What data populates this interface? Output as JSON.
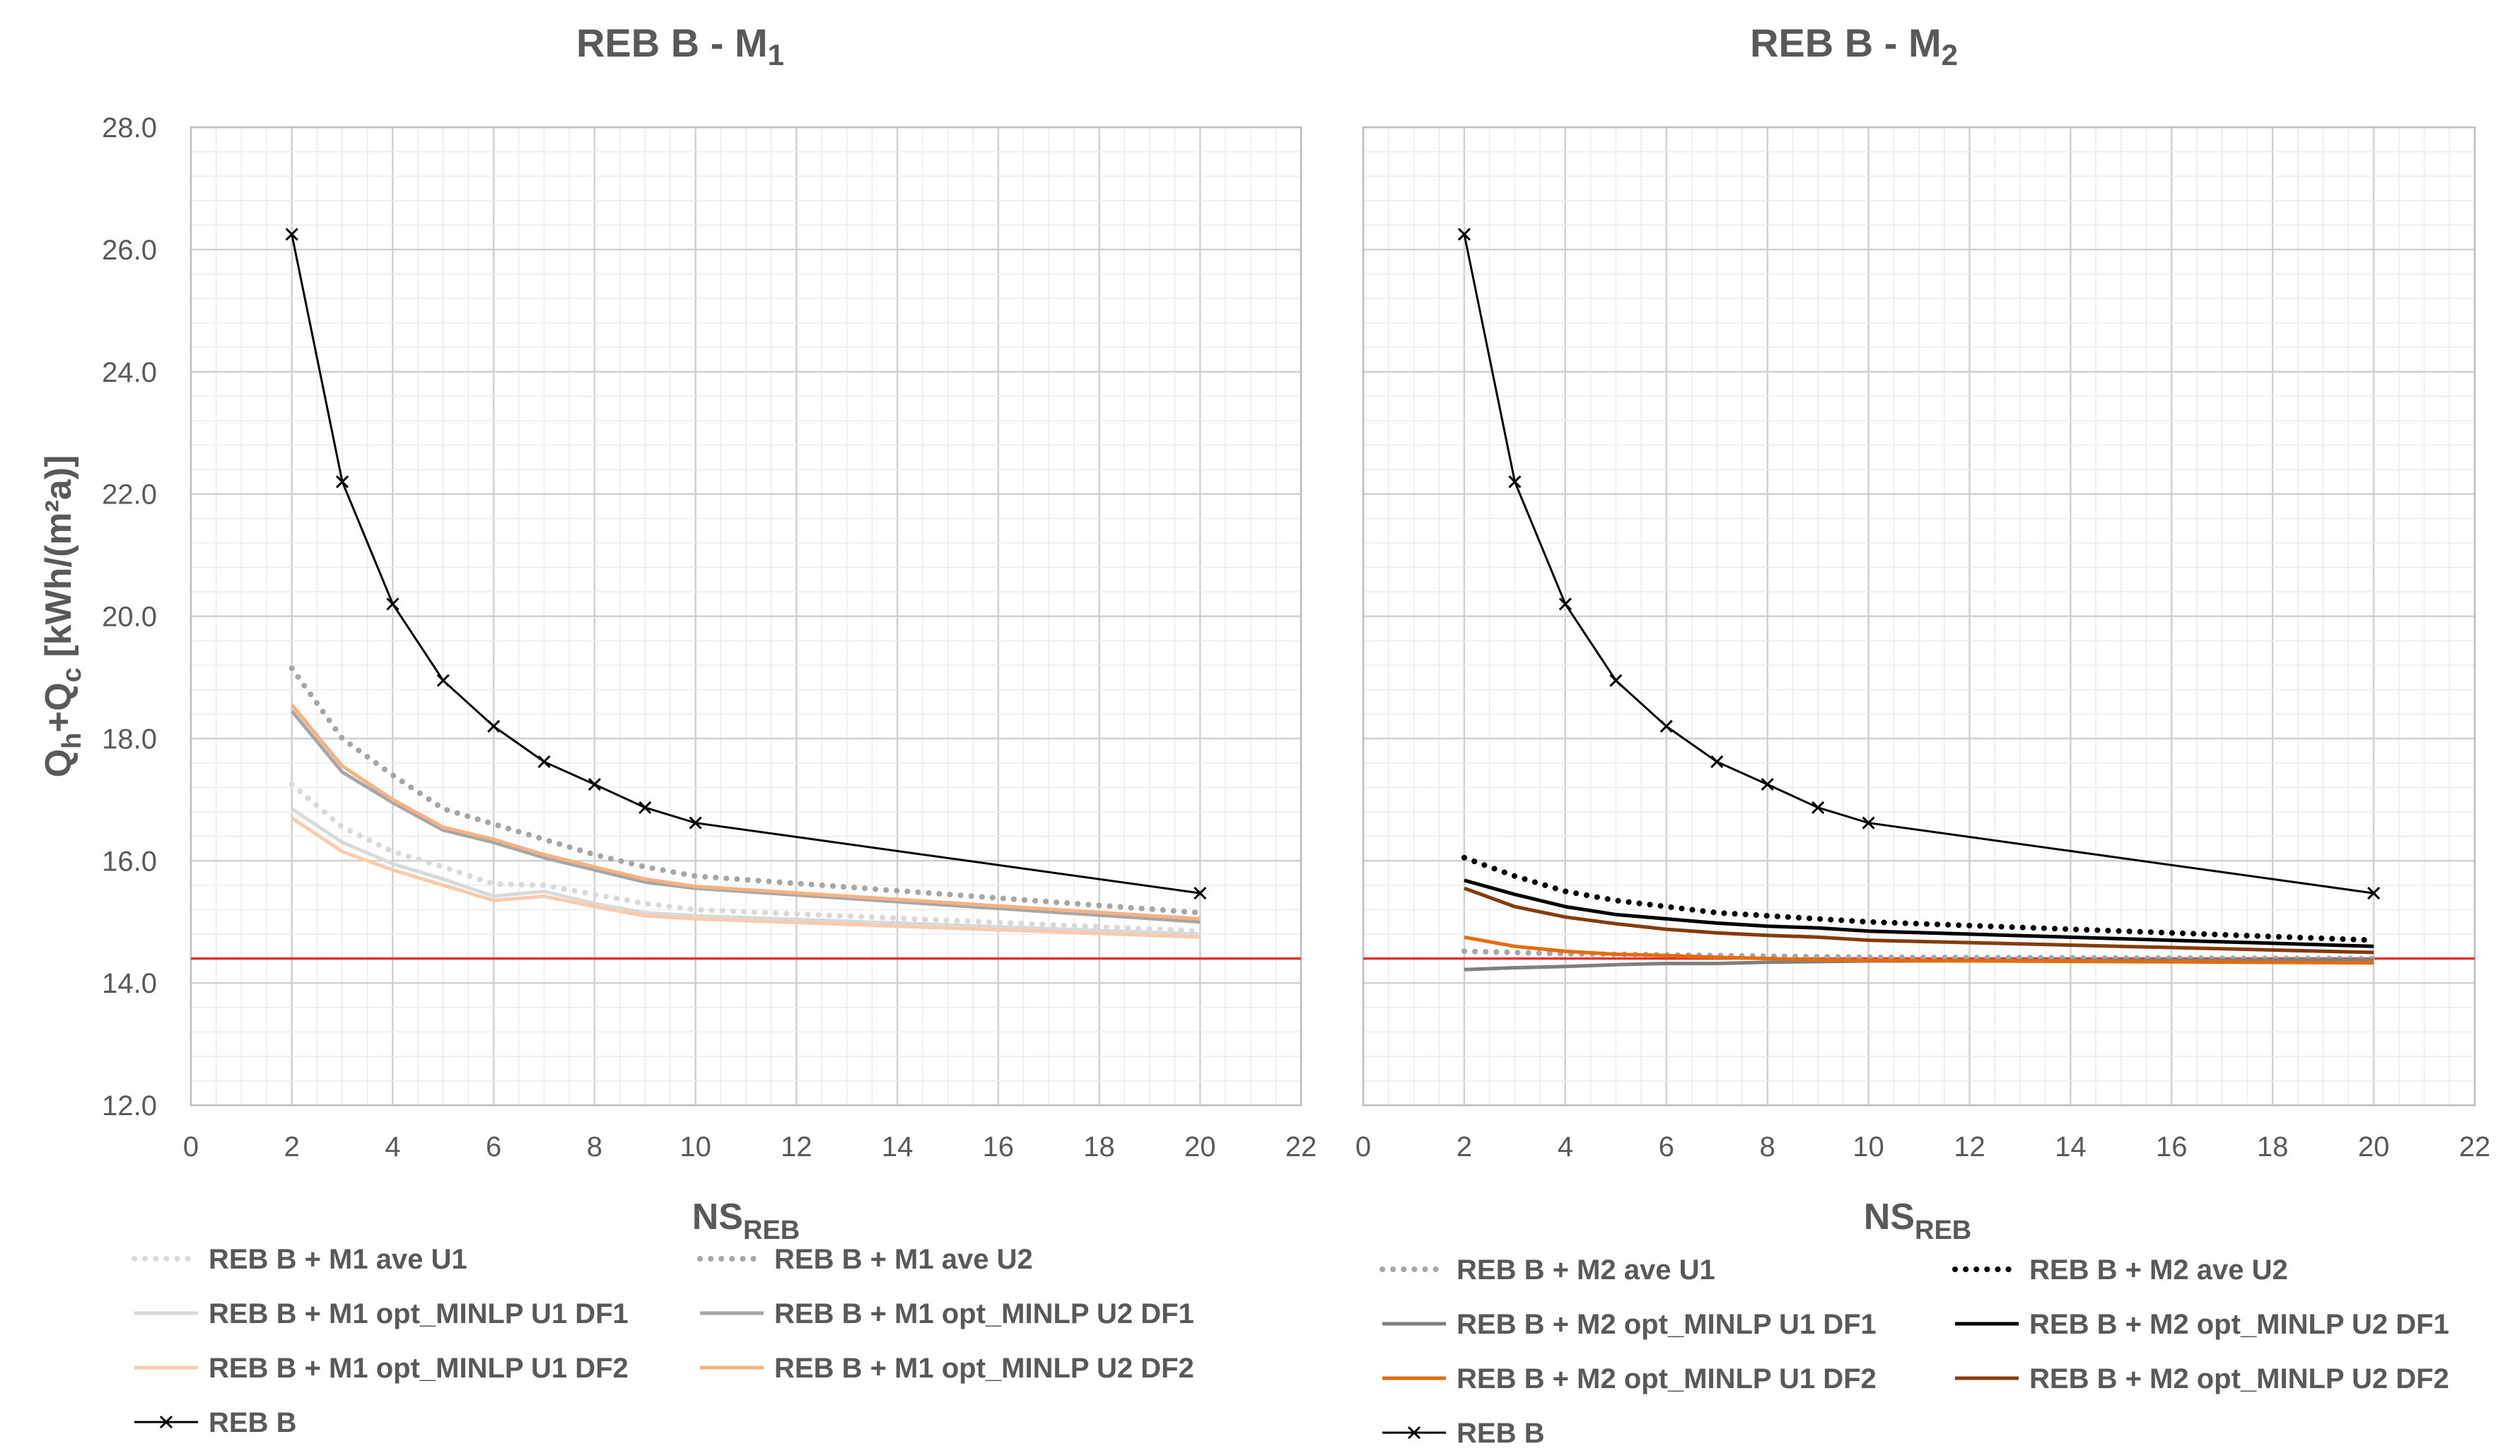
{
  "chart_data": [
    {
      "type": "line",
      "title": "REB B - M",
      "title_subscript": "1",
      "xlabel": "NS",
      "xlabel_subscript": "REB",
      "ylabel": "Q",
      "ylabel_sub1": "h",
      "ylabel_mid": "+Q",
      "ylabel_sub2": "c",
      "ylabel_unit": " [kWh/(m²a)]",
      "xlim": [
        0,
        22
      ],
      "ylim": [
        12,
        28
      ],
      "xticks": [
        "0",
        "2",
        "4",
        "6",
        "8",
        "10",
        "12",
        "14",
        "16",
        "18",
        "20",
        "22"
      ],
      "yticks": [
        "12.0",
        "14.0",
        "16.0",
        "18.0",
        "20.0",
        "22.0",
        "24.0",
        "26.0",
        "28.0"
      ],
      "grid": true,
      "reference_line": {
        "y": 14.4,
        "color": "#e8312b"
      },
      "series": [
        {
          "name": "REB B + M1 ave U1",
          "color": "#d9d9d9",
          "style": "dotted",
          "x": [
            2,
            3,
            4,
            5,
            6,
            7,
            8,
            9,
            10,
            20
          ],
          "y": [
            17.25,
            16.55,
            16.15,
            15.9,
            15.62,
            15.6,
            15.45,
            15.3,
            15.2,
            14.85
          ]
        },
        {
          "name": "REB B + M1 ave U2",
          "color": "#a6a6a6",
          "style": "dotted",
          "x": [
            2,
            3,
            4,
            5,
            6,
            7,
            8,
            9,
            10,
            20
          ],
          "y": [
            19.15,
            18.0,
            17.4,
            16.85,
            16.6,
            16.35,
            16.1,
            15.9,
            15.75,
            15.15
          ]
        },
        {
          "name": "REB B + M1 opt_MINLP U1 DF1",
          "color": "#d9d9d9",
          "style": "solid",
          "x": [
            2,
            3,
            4,
            5,
            6,
            7,
            8,
            9,
            10,
            20
          ],
          "y": [
            16.85,
            16.3,
            15.95,
            15.7,
            15.42,
            15.5,
            15.3,
            15.15,
            15.1,
            14.8
          ]
        },
        {
          "name": "REB B + M1 opt_MINLP U2 DF1",
          "color": "#a6a6a6",
          "style": "solid",
          "x": [
            2,
            3,
            4,
            5,
            6,
            7,
            8,
            9,
            10,
            20
          ],
          "y": [
            18.45,
            17.45,
            16.95,
            16.5,
            16.3,
            16.05,
            15.85,
            15.65,
            15.55,
            15.0
          ]
        },
        {
          "name": "REB B + M1 opt_MINLP U1 DF2",
          "color": "#f8cbad",
          "style": "solid",
          "x": [
            2,
            3,
            4,
            5,
            6,
            7,
            8,
            9,
            10,
            20
          ],
          "y": [
            16.7,
            16.15,
            15.85,
            15.6,
            15.35,
            15.42,
            15.25,
            15.1,
            15.05,
            14.75
          ]
        },
        {
          "name": "REB B + M1 opt_MINLP U2 DF2",
          "color": "#f4b183",
          "style": "solid",
          "x": [
            2,
            3,
            4,
            5,
            6,
            7,
            8,
            9,
            10,
            20
          ],
          "y": [
            18.55,
            17.55,
            17.0,
            16.55,
            16.35,
            16.1,
            15.9,
            15.7,
            15.58,
            15.05
          ]
        },
        {
          "name": "REB B",
          "color": "#000000",
          "style": "solid-x",
          "x": [
            2,
            3,
            4,
            5,
            6,
            7,
            8,
            9,
            10,
            20
          ],
          "y": [
            26.25,
            22.2,
            20.2,
            18.95,
            18.2,
            17.62,
            17.25,
            16.87,
            16.62,
            15.47
          ]
        }
      ]
    },
    {
      "type": "line",
      "title": "REB B - M",
      "title_subscript": "2",
      "xlabel": "NS",
      "xlabel_subscript": "REB",
      "xlim": [
        0,
        22
      ],
      "ylim": [
        12,
        28
      ],
      "xticks": [
        "0",
        "2",
        "4",
        "6",
        "8",
        "10",
        "12",
        "14",
        "16",
        "18",
        "20",
        "22"
      ],
      "grid": true,
      "reference_line": {
        "y": 14.4,
        "color": "#e8312b"
      },
      "series": [
        {
          "name": "REB B + M2 ave U1",
          "color": "#a6a6a6",
          "style": "dotted",
          "x": [
            2,
            3,
            4,
            5,
            6,
            7,
            8,
            9,
            10,
            20
          ],
          "y": [
            14.52,
            14.5,
            14.48,
            14.47,
            14.46,
            14.45,
            14.44,
            14.43,
            14.42,
            14.4
          ]
        },
        {
          "name": "REB B + M2 ave U2",
          "color": "#000000",
          "style": "dotted",
          "x": [
            2,
            3,
            4,
            5,
            6,
            7,
            8,
            9,
            10,
            20
          ],
          "y": [
            16.05,
            15.75,
            15.5,
            15.35,
            15.25,
            15.15,
            15.1,
            15.05,
            15.0,
            14.7
          ]
        },
        {
          "name": "REB B + M2 opt_MINLP U1 DF1",
          "color": "#7f7f7f",
          "style": "solid",
          "x": [
            2,
            3,
            4,
            5,
            6,
            7,
            8,
            9,
            10,
            20
          ],
          "y": [
            14.22,
            14.25,
            14.27,
            14.3,
            14.32,
            14.32,
            14.34,
            14.35,
            14.36,
            14.38
          ]
        },
        {
          "name": "REB B + M2 opt_MINLP U2 DF1",
          "color": "#000000",
          "style": "solid",
          "x": [
            2,
            3,
            4,
            5,
            6,
            7,
            8,
            9,
            10,
            20
          ],
          "y": [
            15.68,
            15.45,
            15.25,
            15.12,
            15.05,
            14.98,
            14.93,
            14.9,
            14.85,
            14.6
          ]
        },
        {
          "name": "REB B + M2 opt_MINLP U1 DF2",
          "color": "#e46c0a",
          "style": "solid",
          "x": [
            2,
            3,
            4,
            5,
            6,
            7,
            8,
            9,
            10,
            20
          ],
          "y": [
            14.75,
            14.6,
            14.52,
            14.47,
            14.45,
            14.42,
            14.4,
            14.38,
            14.37,
            14.33
          ]
        },
        {
          "name": "REB B + M2 opt_MINLP U2 DF2",
          "color": "#843c0c",
          "style": "solid",
          "x": [
            2,
            3,
            4,
            5,
            6,
            7,
            8,
            9,
            10,
            20
          ],
          "y": [
            15.55,
            15.25,
            15.08,
            14.97,
            14.88,
            14.82,
            14.78,
            14.75,
            14.7,
            14.5
          ]
        },
        {
          "name": "REB B",
          "color": "#000000",
          "style": "solid-x",
          "x": [
            2,
            3,
            4,
            5,
            6,
            7,
            8,
            9,
            10,
            20
          ],
          "y": [
            26.25,
            22.2,
            20.2,
            18.95,
            18.2,
            17.62,
            17.25,
            16.87,
            16.62,
            15.47
          ]
        }
      ]
    }
  ]
}
